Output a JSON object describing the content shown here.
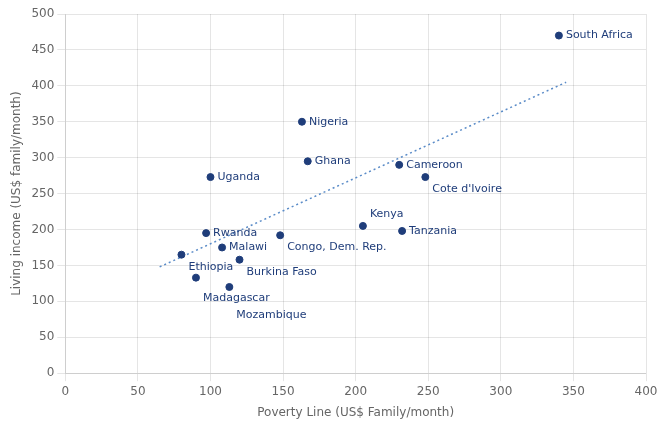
{
  "chart_data": {
    "type": "scatter",
    "x": [
      340,
      163,
      167,
      100,
      230,
      248,
      205,
      232,
      97,
      108,
      80,
      148,
      120,
      90,
      113
    ],
    "values": [
      470,
      350,
      295,
      273,
      290,
      273,
      205,
      198,
      195,
      175,
      165,
      192,
      158,
      133,
      120
    ],
    "labels": [
      "South Africa",
      "Nigeria",
      "Ghana",
      "Uganda",
      "Cameroon",
      "Cote d'Ivoire",
      "Kenya",
      "Tanzania",
      "Rwanda",
      "Malawi",
      "Ethiopia",
      "Congo, Dem. Rep.",
      "Burkina Faso",
      "Madagascar",
      "Mozambique"
    ],
    "color": "#1F3D7A",
    "trendline": {
      "x": [
        65,
        345
      ],
      "values": [
        148,
        405
      ],
      "color": "#5B8CC8",
      "line_style": "dotted"
    },
    "xlabel": "Poverty Line (US$ Family/month)",
    "ylabel": "Living income (US$ family/month)",
    "xlim": [
      0,
      400
    ],
    "ylim": [
      0,
      500
    ],
    "xticks": [
      0,
      50,
      100,
      150,
      200,
      250,
      300,
      350,
      400
    ],
    "yticks": [
      0,
      50,
      100,
      150,
      200,
      250,
      300,
      350,
      400,
      450,
      500
    ],
    "grid": true
  }
}
